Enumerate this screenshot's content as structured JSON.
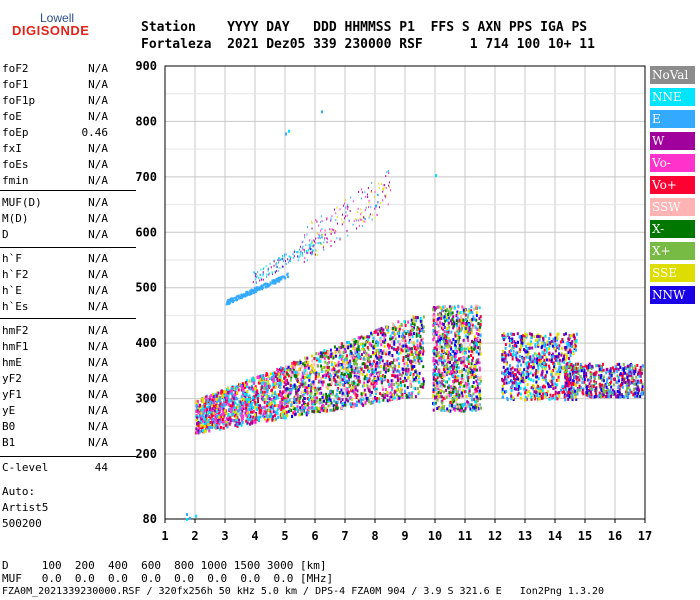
{
  "logo": {
    "top": "Lowell",
    "main": "DIGISONDE"
  },
  "header": {
    "line1": "Station    YYYY DAY   DDD HHMMSS P1  FFS S AXN PPS IGA PS",
    "line2": "Fortaleza  2021 Dez05 339 230000 RSF      1 714 100 10+ 11"
  },
  "params": [
    {
      "name": "foF2",
      "value": "N/A"
    },
    {
      "name": "foF1",
      "value": "N/A"
    },
    {
      "name": "foF1p",
      "value": "N/A"
    },
    {
      "name": "foE",
      "value": "N/A"
    },
    {
      "name": "foEp",
      "value": "0.46"
    },
    {
      "name": "fxI",
      "value": "N/A"
    },
    {
      "name": "foEs",
      "value": "N/A"
    },
    {
      "name": "fmin",
      "value": "N/A"
    },
    {
      "name": "MUF(D)",
      "value": "N/A"
    },
    {
      "name": "M(D)",
      "value": "N/A"
    },
    {
      "name": "D",
      "value": "N/A"
    },
    {
      "name": "h`F",
      "value": "N/A"
    },
    {
      "name": "h`F2",
      "value": "N/A"
    },
    {
      "name": "h`E",
      "value": "N/A"
    },
    {
      "name": "h`Es",
      "value": "N/A"
    },
    {
      "name": "hmF2",
      "value": "N/A"
    },
    {
      "name": "hmF1",
      "value": "N/A"
    },
    {
      "name": "hmE",
      "value": "N/A"
    },
    {
      "name": "yF2",
      "value": "N/A"
    },
    {
      "name": "yF1",
      "value": "N/A"
    },
    {
      "name": "yE",
      "value": "N/A"
    },
    {
      "name": "B0",
      "value": "N/A"
    },
    {
      "name": "B1",
      "value": "N/A"
    },
    {
      "name": "C-level",
      "value": "44"
    }
  ],
  "auto": {
    "line1": "Auto:",
    "line2": "Artist5",
    "line3": "500200"
  },
  "legend": [
    {
      "label": "NoVal",
      "color": "#8c8c8c"
    },
    {
      "label": "NNE",
      "color": "#00e5ff"
    },
    {
      "label": "E",
      "color": "#33aaff"
    },
    {
      "label": "W",
      "color": "#a0009c"
    },
    {
      "label": "Vo-",
      "color": "#ff33cc"
    },
    {
      "label": "Vo+",
      "color": "#ff0033"
    },
    {
      "label": "SSW",
      "color": "#ffb3b3"
    },
    {
      "label": "X-",
      "color": "#007700"
    },
    {
      "label": "X+",
      "color": "#77bb44"
    },
    {
      "label": "SSE",
      "color": "#dddd00"
    },
    {
      "label": "NNW",
      "color": "#1a00e6"
    }
  ],
  "chart_data": {
    "type": "scatter",
    "xlim": [
      1,
      17
    ],
    "ylim": [
      80,
      900
    ],
    "x_ticks": [
      "1",
      "2",
      "3",
      "4",
      "5",
      "6",
      "7",
      "8",
      "9",
      "10",
      "11",
      "12",
      "13",
      "14",
      "15",
      "16",
      "17"
    ],
    "y_ticks": [
      "80",
      "200",
      "300",
      "400",
      "500",
      "600",
      "700",
      "800",
      "900"
    ],
    "grid": true,
    "traces": [
      {
        "name": "E",
        "from": [
          3.0,
          470
        ],
        "to": [
          5.1,
          520
        ]
      },
      {
        "name": "E",
        "from": [
          3.9,
          505
        ],
        "to": [
          6.2,
          575
        ]
      },
      {
        "name": "W",
        "from": [
          5.0,
          540
        ],
        "to": [
          7.5,
          625
        ]
      },
      {
        "name": "Vo+",
        "from": [
          2.0,
          240
        ],
        "to": [
          9.5,
          310
        ]
      },
      {
        "name": "W",
        "from": [
          3.0,
          320
        ],
        "to": [
          9.5,
          390
        ]
      },
      {
        "name": "NNE",
        "from": [
          8.0,
          320
        ],
        "to": [
          11.5,
          450
        ]
      },
      {
        "name": "W",
        "from": [
          12.0,
          320
        ],
        "to": [
          16.9,
          345
        ]
      }
    ]
  },
  "footer": {
    "line1": "D     100  200  400  600  800 1000 1500 3000 [km]",
    "line2": "MUF   0.0  0.0  0.0  0.0  0.0  0.0  0.0  0.0 [MHz]",
    "line3": "FZA0M_2021339230000.RSF / 320fx256h 50 kHz 5.0 km / DPS-4 FZA0M 904 / 3.9 S 321.6 E   Ion2Png 1.3.20"
  }
}
